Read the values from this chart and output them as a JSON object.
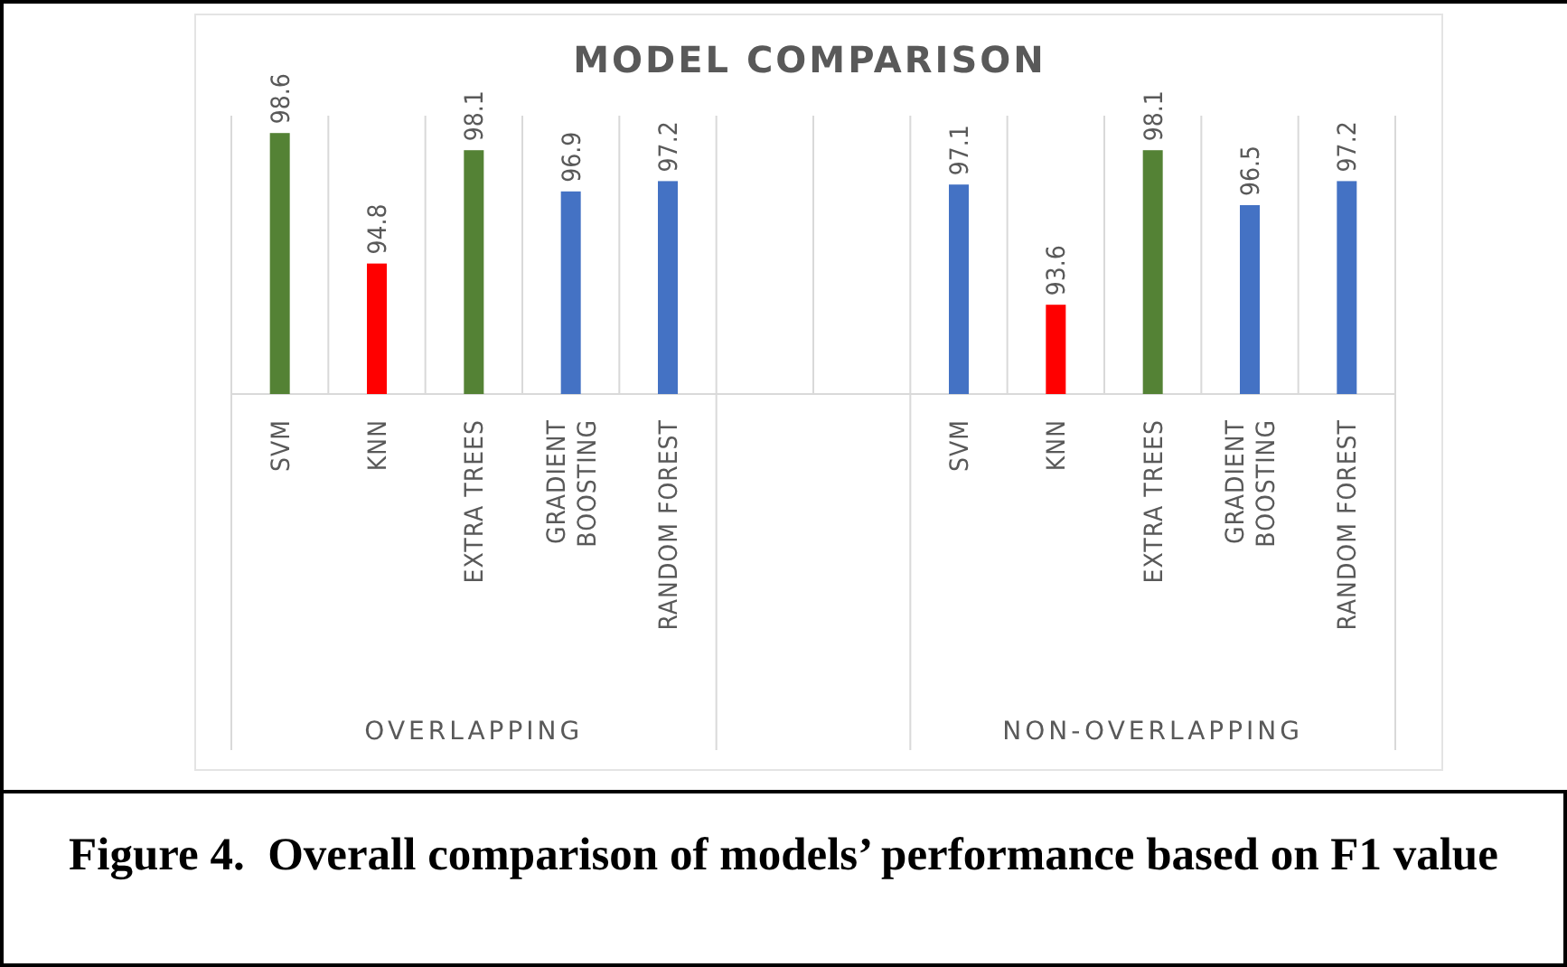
{
  "chart_data": {
    "type": "bar",
    "title": "MODEL COMPARISON",
    "categories": [
      "SVM",
      "KNN",
      "EXTRA TREES",
      "GRADIENT BOOSTING",
      "RANDOM FOREST",
      null,
      null,
      "SVM",
      "KNN",
      "EXTRA TREES",
      "GRADIENT BOOSTING",
      "RANDOM FOREST"
    ],
    "values": [
      98.6,
      94.8,
      98.1,
      96.9,
      97.2,
      null,
      null,
      97.1,
      93.6,
      98.1,
      96.5,
      97.2
    ],
    "colors": [
      "#548235",
      "#ff0000",
      "#548235",
      "#4472c4",
      "#4472c4",
      null,
      null,
      "#4472c4",
      "#ff0000",
      "#548235",
      "#4472c4",
      "#4472c4"
    ],
    "ylim": [
      91,
      99
    ],
    "data_labels": true,
    "annotations": [
      "OVERLAPPING",
      "NON-OVERLAPPING",
      "Figure 4.  Overall comparison of models’ performance based on F1 value"
    ]
  }
}
